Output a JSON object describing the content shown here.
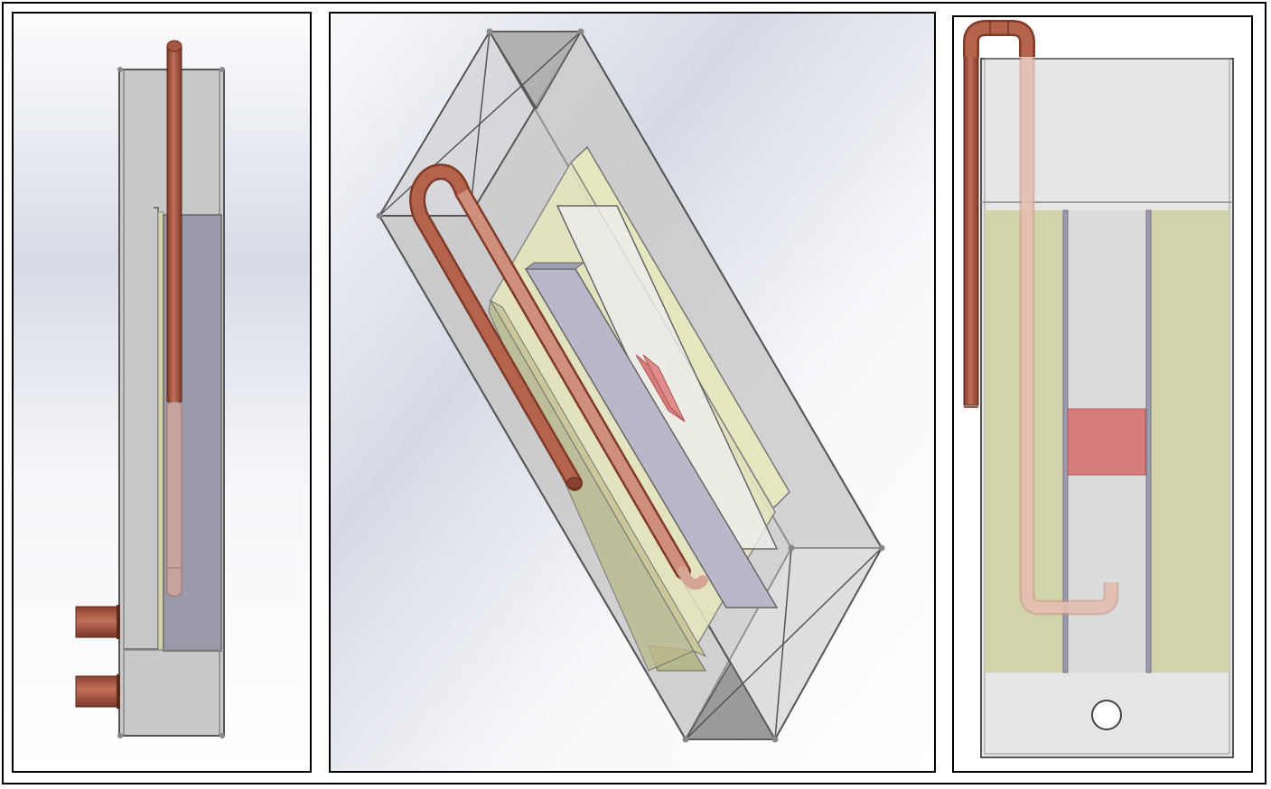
{
  "figure": {
    "panels": [
      {
        "view": "side"
      },
      {
        "view": "isometric"
      },
      {
        "view": "front"
      }
    ]
  },
  "colors": {
    "background_light": "#fbfcfd",
    "background_dark": "#d5d9e4",
    "box_frame": "#4d4d4d",
    "box_wall": "#c6c6c6",
    "copper_pipe": "#b4634c",
    "copper_pipe_dark": "#7f3a28",
    "copper_pipe_faded": "#dfb8ac",
    "yellow_plate": "#d3d3ab",
    "blue_plate": "#b8b8c8",
    "purple_block": "#9b9aab",
    "red_block": "#d97c7c",
    "outline": "#000000"
  }
}
